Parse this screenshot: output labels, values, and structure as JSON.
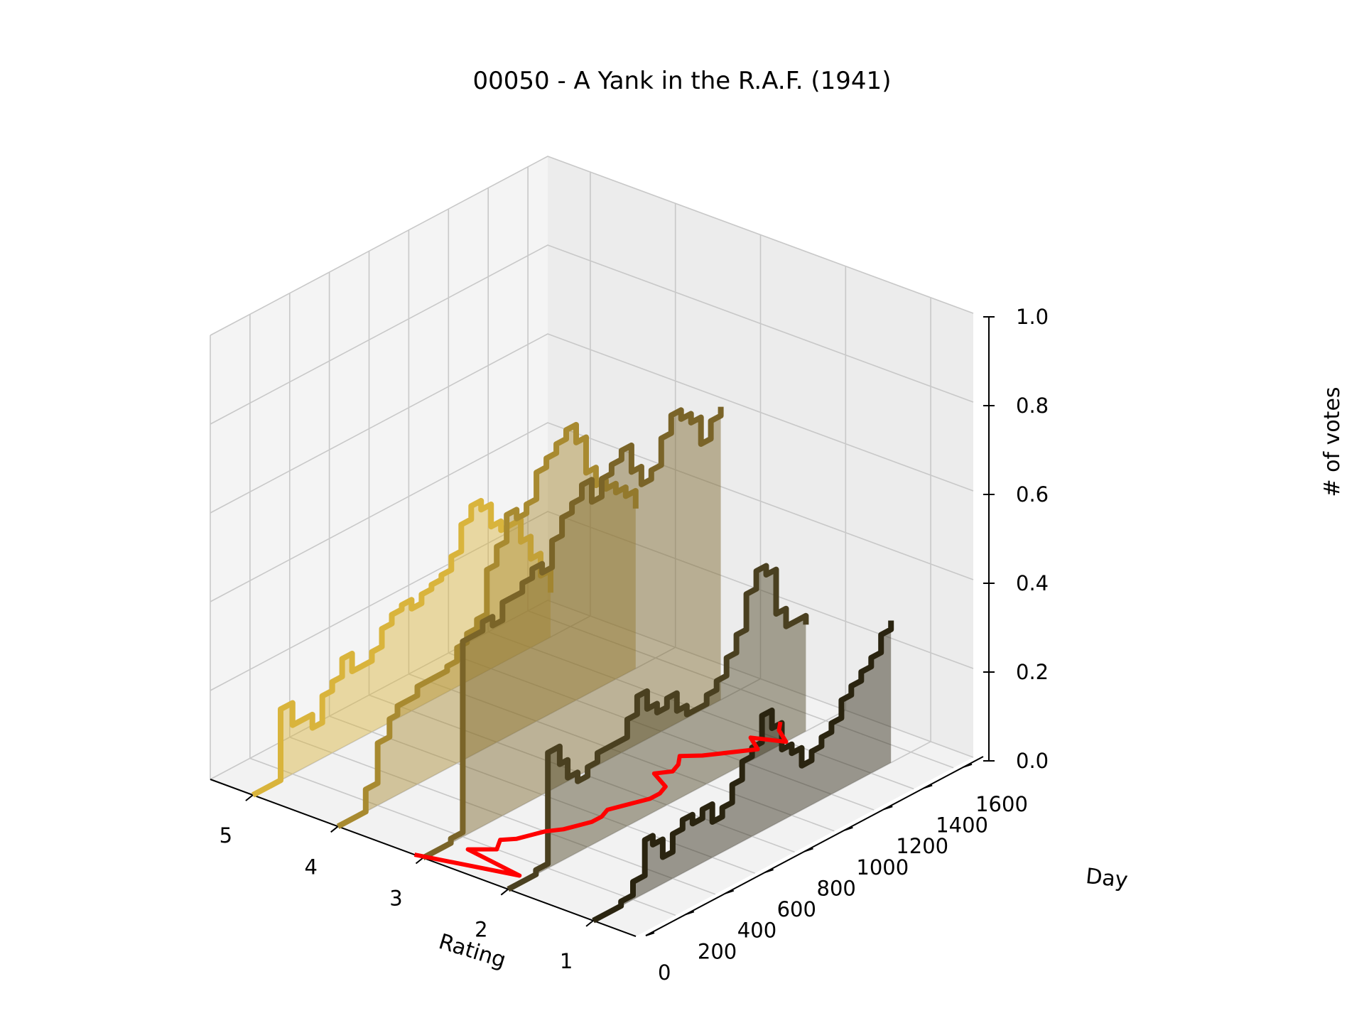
{
  "chart_data": {
    "type": "line",
    "title": "00050 - A Yank in the R.A.F. (1941)",
    "xlabel": "Rating",
    "ylabel": "Day",
    "zlabel": "# of votes",
    "projection": "3d",
    "grid": true,
    "x_ticks": [
      "5",
      "4",
      "3",
      "2",
      "1"
    ],
    "y_ticks": [
      "0",
      "200",
      "400",
      "600",
      "800",
      "1000",
      "1200",
      "1400",
      "1600"
    ],
    "z_ticks": [
      "0.0",
      "0.2",
      "0.4",
      "0.6",
      "0.8",
      "1.0"
    ],
    "xlim": [
      0.5,
      5.5
    ],
    "ylim": [
      0,
      1700
    ],
    "zlim": [
      0,
      1
    ],
    "day": [
      0,
      100,
      140,
      200,
      260,
      300,
      350,
      400,
      450,
      500,
      550,
      600,
      650,
      700,
      750,
      800,
      850,
      900,
      950,
      1000,
      1050,
      1100,
      1150,
      1200,
      1250,
      1300,
      1350,
      1400,
      1450,
      1500
    ],
    "series": [
      {
        "rating": 5,
        "color": "#d9b43c",
        "values": [
          0,
          0,
          0.16,
          0.11,
          0.11,
          0.08,
          0.14,
          0.16,
          0.2,
          0.16,
          0.16,
          0.18,
          0.22,
          0.24,
          0.25,
          0.23,
          0.25,
          0.26,
          0.27,
          0.3,
          0.36,
          0.39,
          0.37,
          0.32,
          0.3,
          0.3,
          0.25,
          0.2,
          0.15,
          0.1
        ]
      },
      {
        "rating": 4,
        "color": "#a88a30",
        "values": [
          0,
          0,
          0.05,
          0.14,
          0.18,
          0.2,
          0.2,
          0.22,
          0.22,
          0.22,
          0.23,
          0.26,
          0.28,
          0.3,
          0.4,
          0.44,
          0.5,
          0.48,
          0.5,
          0.56,
          0.58,
          0.6,
          0.62,
          0.58,
          0.5,
          0.46,
          0.44,
          0.42,
          0.4,
          0.36
        ]
      },
      {
        "rating": 3,
        "color": "#7a6428",
        "values": [
          0,
          0,
          0.01,
          0.44,
          0.44,
          0.46,
          0.44,
          0.48,
          0.48,
          0.5,
          0.52,
          0.5,
          0.56,
          0.6,
          0.62,
          0.65,
          0.6,
          0.64,
          0.66,
          0.68,
          0.62,
          0.58,
          0.6,
          0.66,
          0.7,
          0.68,
          0.66,
          0.6,
          0.64,
          0.66
        ]
      },
      {
        "rating": 2,
        "color": "#4a4020",
        "values": [
          0,
          0,
          0.01,
          0.26,
          0.22,
          0.18,
          0.16,
          0.18,
          0.2,
          0.2,
          0.2,
          0.24,
          0.28,
          0.24,
          0.22,
          0.24,
          0.2,
          0.18,
          0.18,
          0.2,
          0.22,
          0.26,
          0.3,
          0.38,
          0.42,
          0.4,
          0.3,
          0.26,
          0.26,
          0.24
        ]
      },
      {
        "rating": 1,
        "color": "#2a2410",
        "values": [
          0,
          0,
          0.01,
          0.04,
          0.12,
          0.1,
          0.06,
          0.1,
          0.12,
          0.1,
          0.12,
          0.08,
          0.1,
          0.14,
          0.18,
          0.2,
          0.26,
          0.22,
          0.16,
          0.14,
          0.1,
          0.12,
          0.14,
          0.16,
          0.2,
          0.22,
          0.24,
          0.26,
          0.3,
          0.32
        ]
      }
    ],
    "mean_rating": {
      "color": "#ff0000",
      "values": [
        3.1,
        2.1,
        2.8,
        2.6,
        2.7,
        2.6,
        2.55,
        2.5,
        2.4,
        2.35,
        2.3,
        2.3,
        2.35,
        2.3,
        2.25,
        2.2,
        2.2,
        2.25,
        2.5,
        2.4,
        2.45,
        2.55,
        2.4,
        2.3,
        2.2,
        2.1,
        2.3,
        2.0,
        2.2,
        2.3
      ]
    }
  }
}
